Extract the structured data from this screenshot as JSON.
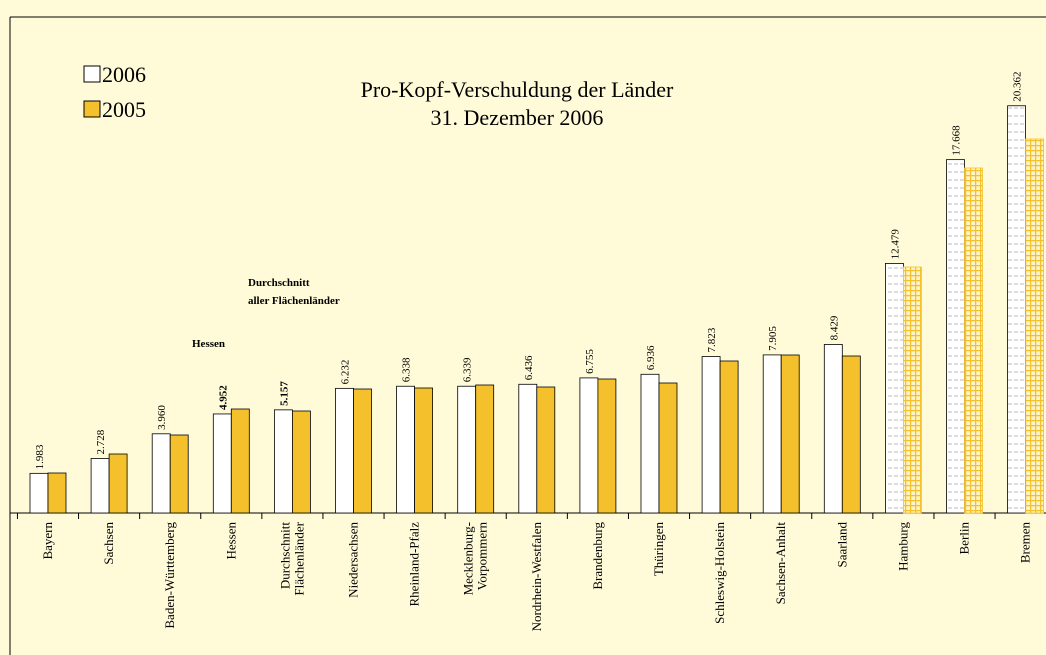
{
  "chart_data": {
    "type": "bar",
    "title": [
      "Pro-Kopf-Verschuldung der Länder",
      "31. Dezember 2006"
    ],
    "annotations": [
      [
        "Durchschnitt",
        "aller Flächenländer"
      ],
      [
        "Hessen"
      ]
    ],
    "categories": [
      [
        "Bayern"
      ],
      [
        "Sachsen"
      ],
      [
        "Baden-Württemberg"
      ],
      [
        "Hessen"
      ],
      [
        "Durchschnitt",
        "Flächenländer"
      ],
      [
        "Niedersachsen"
      ],
      [
        "Rheinland-Pfalz"
      ],
      [
        "Mecklenburg-",
        "Vorpommern"
      ],
      [
        "Nordrhein-Westfalen"
      ],
      [
        "Brandenburg"
      ],
      [
        "Thüringen"
      ],
      [
        "Schleswig-Holstein"
      ],
      [
        "Sachsen-Anhalt"
      ],
      [
        "Saarland"
      ],
      [
        "Hamburg"
      ],
      [
        "Berlin"
      ],
      [
        "Bremen"
      ]
    ],
    "series": [
      {
        "name": "2006",
        "color": "#ffffff",
        "values": [
          1983,
          2728,
          3960,
          4952,
          5157,
          6232,
          6338,
          6339,
          6436,
          6755,
          6936,
          7823,
          7905,
          8429,
          12479,
          17668,
          20362
        ],
        "value_labels": [
          "1.983",
          "2.728",
          "3.960",
          "4.952",
          "5.157",
          "6.232",
          "6.338",
          "6.339",
          "6.436",
          "6.755",
          "6.936",
          "7.823",
          "7.905",
          "8.429",
          "12.479",
          "17.668",
          "20.362"
        ]
      },
      {
        "name": "2005",
        "color": "#f4c12c",
        "values": [
          2000,
          2950,
          3900,
          5200,
          5100,
          6200,
          6250,
          6400,
          6300,
          6700,
          6500,
          7600,
          7900,
          7850,
          12300,
          17250,
          18700
        ]
      }
    ],
    "ylim": [
      0,
      24800
    ],
    "bold_labels": [
      3,
      4
    ],
    "hatched": [
      14,
      15,
      16
    ]
  }
}
